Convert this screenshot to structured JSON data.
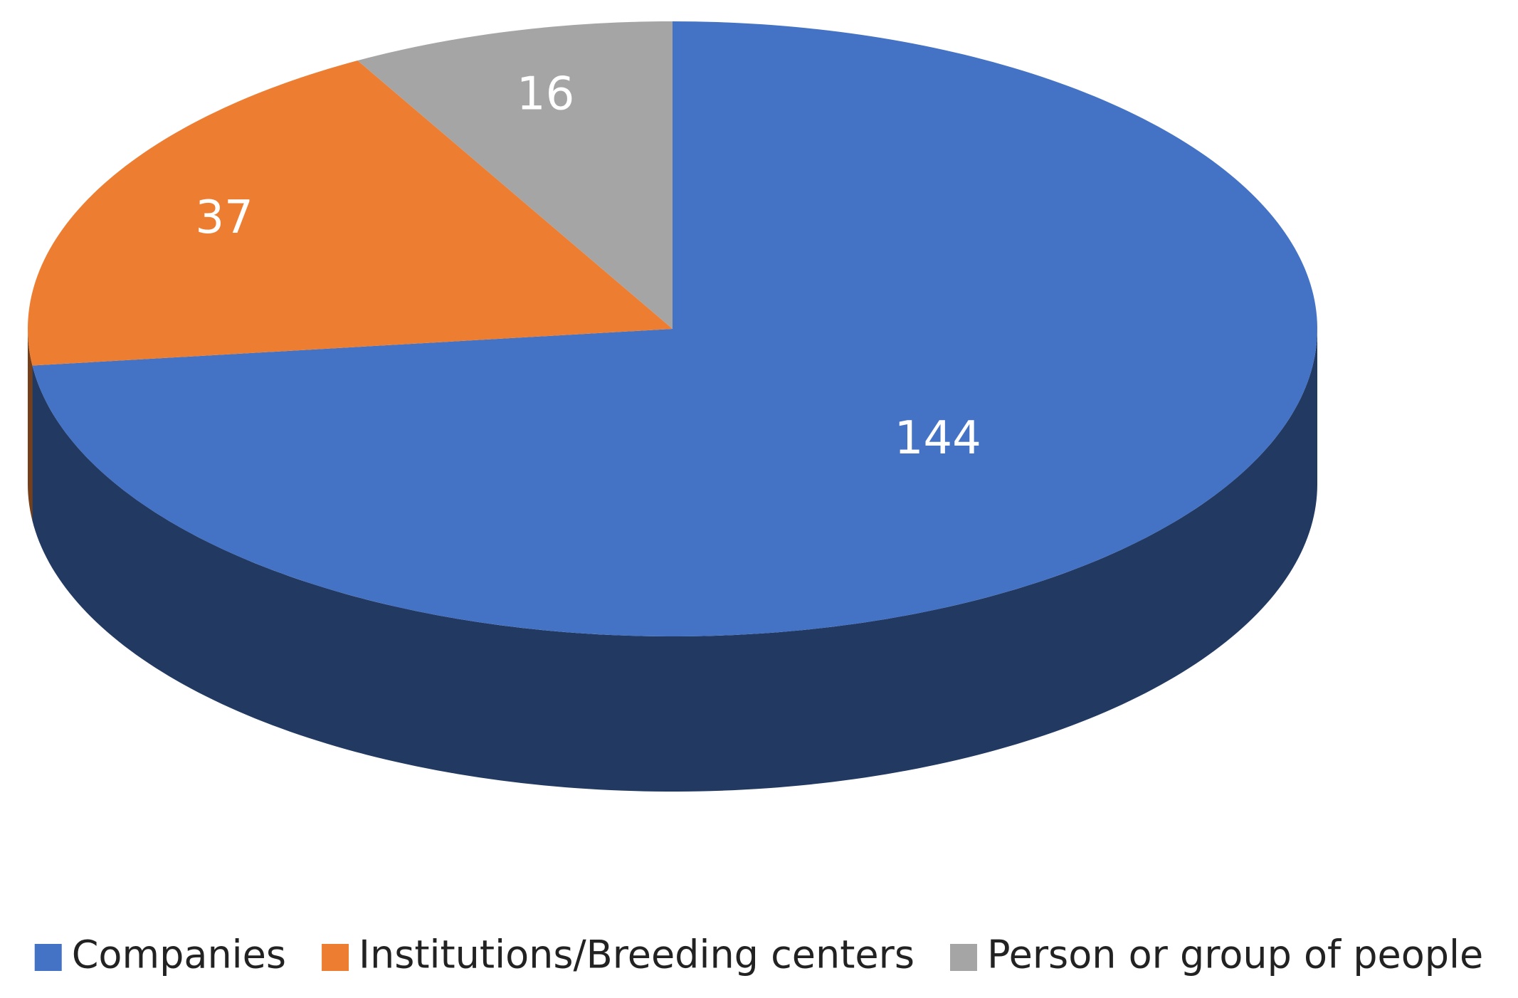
{
  "chart_data": {
    "type": "pie3d",
    "categories": [
      "Companies",
      "Institutions/Breeding centers",
      "Person or group of people"
    ],
    "values": [
      144,
      37,
      16
    ],
    "colors": [
      "#4472c4",
      "#ed7d31",
      "#a5a5a5"
    ],
    "legend": "bottom"
  }
}
